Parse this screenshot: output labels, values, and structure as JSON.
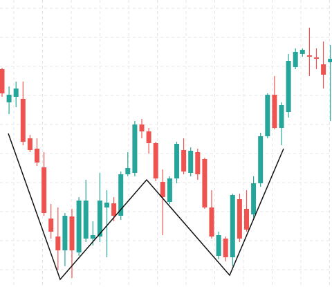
{
  "chart_data": {
    "type": "candlestick",
    "ylim": [
      0,
      415
    ],
    "up_color": "#26a69a",
    "down_color": "#ef5350",
    "open": [
      315,
      267,
      275,
      272,
      215,
      200,
      173,
      99,
      73,
      53,
      102,
      50,
      70,
      70,
      73,
      115,
      121,
      103,
      163,
      165,
      235,
      225,
      208,
      152,
      123,
      157,
      198,
      165,
      195,
      185,
      115,
      45,
      70,
      43,
      127,
      113,
      105,
      150,
      218,
      278,
      230,
      253,
      318,
      337,
      335,
      332,
      322,
      325
    ],
    "high": [
      317,
      290,
      297,
      297,
      220,
      215,
      195,
      120,
      115,
      107,
      113,
      130,
      155,
      95,
      165,
      140,
      130,
      167,
      195,
      240,
      243,
      230,
      210,
      170,
      160,
      210,
      215,
      202,
      200,
      187,
      140,
      80,
      73,
      135,
      135,
      140,
      160,
      223,
      280,
      305,
      267,
      337,
      345,
      345,
      375,
      345,
      355,
      350
    ],
    "low": [
      275,
      250,
      260,
      205,
      195,
      175,
      103,
      70,
      25,
      30,
      13,
      45,
      65,
      60,
      65,
      43,
      95,
      97,
      160,
      160,
      215,
      193,
      153,
      75,
      120,
      150,
      163,
      160,
      155,
      113,
      70,
      40,
      37,
      30,
      65,
      80,
      100,
      145,
      215,
      228,
      205,
      245,
      315,
      333,
      305,
      315,
      287,
      240
    ],
    "close": [
      280,
      278,
      287,
      210,
      198,
      180,
      107,
      80,
      53,
      103,
      53,
      125,
      125,
      75,
      125,
      122,
      103,
      163,
      172,
      235,
      225,
      208,
      157,
      130,
      157,
      207,
      167,
      197,
      163,
      115,
      73,
      75,
      43,
      133,
      70,
      83,
      150,
      218,
      278,
      230,
      263,
      327,
      340,
      343,
      333,
      330,
      307,
      330
    ]
  }
}
